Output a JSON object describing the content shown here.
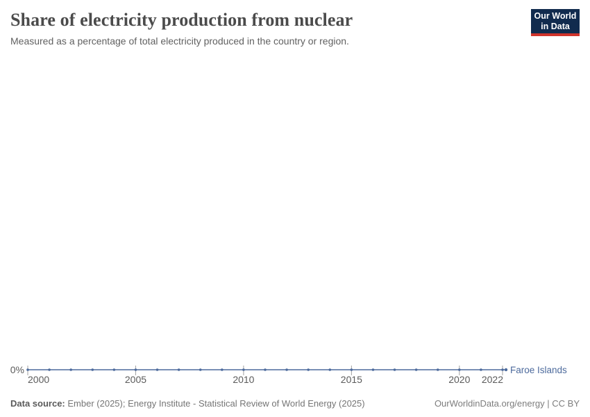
{
  "header": {
    "title": "Share of electricity production from nuclear",
    "subtitle": "Measured as a percentage of total electricity produced in the country or region.",
    "logo": {
      "line1": "Our World",
      "line2": "in Data"
    }
  },
  "chart_data": {
    "type": "line",
    "title": "Share of electricity production from nuclear",
    "subtitle": "Measured as a percentage of total electricity produced in the country or region.",
    "x": [
      2000,
      2001,
      2002,
      2003,
      2004,
      2005,
      2006,
      2007,
      2008,
      2009,
      2010,
      2011,
      2012,
      2013,
      2014,
      2015,
      2016,
      2017,
      2018,
      2019,
      2020,
      2021,
      2022
    ],
    "series": [
      {
        "name": "Faroe Islands",
        "color": "#4C6A9C",
        "values": [
          0,
          0,
          0,
          0,
          0,
          0,
          0,
          0,
          0,
          0,
          0,
          0,
          0,
          0,
          0,
          0,
          0,
          0,
          0,
          0,
          0,
          0,
          0
        ]
      }
    ],
    "x_ticks": [
      2000,
      2005,
      2010,
      2015,
      2020,
      2022
    ],
    "y_axis": {
      "tick_labels": [
        "0%"
      ],
      "min": 0,
      "max": 0,
      "unit": "%"
    },
    "grid": false,
    "legend_position": "end-of-line"
  },
  "footer": {
    "source_label": "Data source:",
    "source_text": "Ember (2025); Energy Institute - Statistical Review of World Energy (2025)",
    "right_text": "OurWorldinData.org/energy | CC BY"
  },
  "colors": {
    "accent": "#4C6A9C",
    "logo_bg": "#112B4E",
    "logo_bar": "#D0342C",
    "axis_text": "#5B5B5B",
    "tick": "#A0A0A0"
  }
}
